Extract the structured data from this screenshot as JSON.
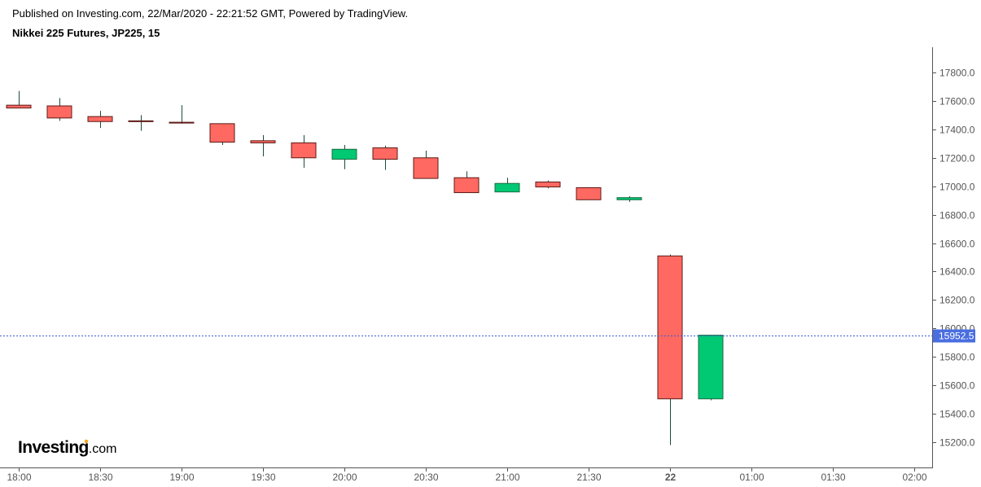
{
  "header": {
    "published": "Published on Investing.com, 22/Mar/2020 - 22:21:52 GMT, Powered by TradingView.",
    "title": "Nikkei 225 Futures, JP225, 15"
  },
  "logo": {
    "brand": "Investing",
    "suffix": ".com",
    "accent_color": "#f7a21b"
  },
  "colors": {
    "up_body": "#00c873",
    "up_border": "#1a6b43",
    "down_body": "#ff6961",
    "down_border": "#5c1a16",
    "wick": "#1b4d35",
    "price_line": "#3b5bdb",
    "price_label_bg": "#4a6ee0",
    "axis": "#555555",
    "tick_text": "#555555"
  },
  "chart_data": {
    "type": "candlestick",
    "title": "Nikkei 225 Futures, JP225, 15",
    "interval": "15",
    "xlabel": "",
    "ylabel": "",
    "ylim": [
      15100,
      17950
    ],
    "grid": false,
    "y_ticks": [
      "17800.0",
      "17600.0",
      "17400.0",
      "17200.0",
      "17000.0",
      "16800.0",
      "16600.0",
      "16400.0",
      "16200.0",
      "16000.0",
      "15800.0",
      "15600.0",
      "15400.0",
      "15200.0"
    ],
    "x_ticks": [
      "18:00",
      "18:30",
      "19:00",
      "19:30",
      "20:00",
      "20:30",
      "21:00",
      "21:30",
      "22",
      "01:00",
      "01:30",
      "02:00"
    ],
    "last_price": "15952.5",
    "candles": [
      {
        "t": "18:00",
        "open": 17570,
        "high": 17670,
        "low": 17550,
        "close": 17550
      },
      {
        "t": "18:15",
        "open": 17565,
        "high": 17620,
        "low": 17460,
        "close": 17480
      },
      {
        "t": "18:30",
        "open": 17490,
        "high": 17530,
        "low": 17410,
        "close": 17455
      },
      {
        "t": "18:45",
        "open": 17460,
        "high": 17500,
        "low": 17390,
        "close": 17455
      },
      {
        "t": "19:00",
        "open": 17450,
        "high": 17570,
        "low": 17440,
        "close": 17448
      },
      {
        "t": "19:15",
        "open": 17440,
        "high": 17440,
        "low": 17290,
        "close": 17310
      },
      {
        "t": "19:30",
        "open": 17320,
        "high": 17360,
        "low": 17210,
        "close": 17305
      },
      {
        "t": "19:45",
        "open": 17305,
        "high": 17360,
        "low": 17130,
        "close": 17200
      },
      {
        "t": "20:00",
        "open": 17190,
        "high": 17290,
        "low": 17120,
        "close": 17260
      },
      {
        "t": "20:15",
        "open": 17270,
        "high": 17285,
        "low": 17115,
        "close": 17190
      },
      {
        "t": "20:30",
        "open": 17200,
        "high": 17250,
        "low": 17055,
        "close": 17055
      },
      {
        "t": "20:45",
        "open": 17060,
        "high": 17105,
        "low": 16955,
        "close": 16955
      },
      {
        "t": "21:00",
        "open": 16960,
        "high": 17060,
        "low": 16960,
        "close": 17020
      },
      {
        "t": "21:15",
        "open": 17030,
        "high": 17040,
        "low": 16985,
        "close": 16995
      },
      {
        "t": "21:30",
        "open": 16990,
        "high": 16990,
        "low": 16905,
        "close": 16905
      },
      {
        "t": "21:45",
        "open": 16905,
        "high": 16930,
        "low": 16890,
        "close": 16920
      },
      {
        "t": "22:00",
        "open": 16510,
        "high": 16520,
        "low": 15180,
        "close": 15505
      },
      {
        "t": "22:15",
        "open": 15505,
        "high": 15952.5,
        "low": 15495,
        "close": 15952.5
      }
    ]
  }
}
